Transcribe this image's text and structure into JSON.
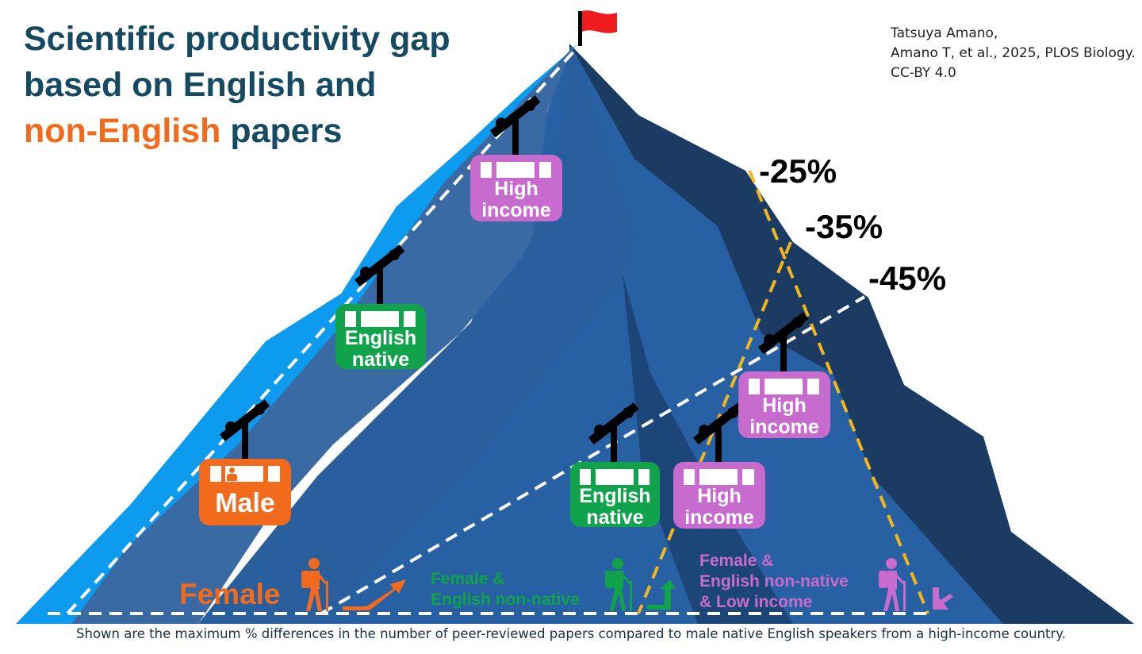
{
  "title": {
    "line1": "Scientific productivity gap",
    "line2": "based on English and",
    "line3_highlight": "non-English",
    "line3_rest": "papers"
  },
  "credit": {
    "line1": "Tatsuya Amano,",
    "line2": "Amano T, et al., 2025, PLOS Biology.",
    "line3": "CC-BY 4.0"
  },
  "gaps": [
    {
      "label": "-25%",
      "value": -25
    },
    {
      "label": "-35%",
      "value": -35
    },
    {
      "label": "-45%",
      "value": -45
    }
  ],
  "routes": [
    {
      "group": "Female",
      "color": "#f26b1d",
      "cars": [
        {
          "label": "Male",
          "color": "#f26b1d"
        },
        {
          "label_line1": "English",
          "label_line2": "native",
          "color": "#11a34c"
        },
        {
          "label_line1": "High",
          "label_line2": "income",
          "color": "#c86bce"
        }
      ]
    },
    {
      "group_line1": "Female &",
      "group_line2": "English non-native",
      "color": "#11a34c",
      "cars": [
        {
          "label_line1": "English",
          "label_line2": "native",
          "color": "#11a34c"
        },
        {
          "label_line1": "High",
          "label_line2": "income",
          "color": "#c86bce"
        }
      ]
    },
    {
      "group_line1": "Female &",
      "group_line2": "English non-native",
      "group_line3": "& Low income",
      "color": "#c86bce",
      "cars": [
        {
          "label_line1": "High",
          "label_line2": "income",
          "color": "#c86bce"
        }
      ]
    }
  ],
  "footer": "Shown are the maximum % differences in the number of peer-reviewed papers compared to male native English speakers from a high-income country.",
  "icons": [
    "flag-icon",
    "hiker-icon",
    "gondola-hanger-icon",
    "arrow-up-right-icon",
    "person-icon"
  ],
  "colors": {
    "title": "#164a63",
    "highlight": "#f26b1d",
    "mountain_light": "#0d9bf0",
    "mountain_mid": "#3a74b8",
    "mountain_dark": "#1b3b63",
    "route_dash": "#ffffff",
    "gap_dash": "#f2b61b"
  }
}
